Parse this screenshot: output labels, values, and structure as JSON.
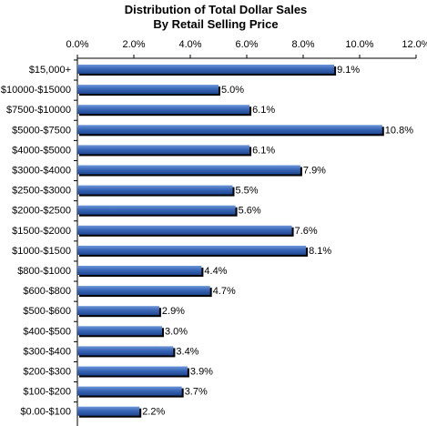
{
  "chart_data": {
    "type": "bar",
    "orientation": "horizontal",
    "title": "Distribution of Total Dollar Sales",
    "subtitle": "By Retail Selling Price",
    "xlim": [
      0,
      12
    ],
    "x_ticks": [
      "0.0%",
      "2.0%",
      "4.0%",
      "6.0%",
      "8.0%",
      "10.0%",
      "12.0%"
    ],
    "x_axis_position": "top",
    "grid": false,
    "legend": "none",
    "bar_color": "#2E5FAE",
    "categories": [
      "$15,000+",
      "$10000-$15000",
      "$7500-$10000",
      "$5000-$7500",
      "$4000-$5000",
      "$3000-$4000",
      "$2500-$3000",
      "$2000-$2500",
      "$1500-$2000",
      "$1000-$1500",
      "$800-$1000",
      "$600-$800",
      "$500-$600",
      "$400-$500",
      "$300-$400",
      "$200-$300",
      "$100-$200",
      "$0.00-$100"
    ],
    "values": [
      9.1,
      5.0,
      6.1,
      10.8,
      6.1,
      7.9,
      5.5,
      5.6,
      7.6,
      8.1,
      4.4,
      4.7,
      2.9,
      3.0,
      3.4,
      3.9,
      3.7,
      2.2
    ],
    "data_labels": [
      "9.1%",
      "5.0%",
      "6.1%",
      "10.8%",
      "6.1%",
      "7.9%",
      "5.5%",
      "5.6%",
      "7.6%",
      "8.1%",
      "4.4%",
      "4.7%",
      "2.9%",
      "3.0%",
      "3.4%",
      "3.9%",
      "3.7%",
      "2.2%"
    ]
  }
}
